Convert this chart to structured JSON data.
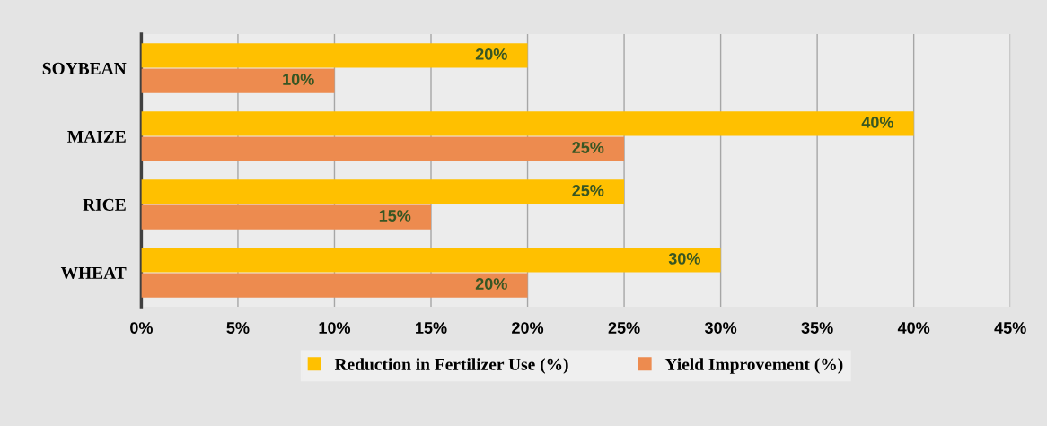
{
  "chart_data": {
    "type": "bar",
    "orientation": "horizontal",
    "categories": [
      "SOYBEAN",
      "MAIZE",
      "RICE",
      "WHEAT"
    ],
    "series": [
      {
        "name": "Reduction in Fertilizer Use (%)",
        "color": "#ffc000",
        "values": [
          20,
          40,
          25,
          30
        ],
        "value_labels": [
          "20%",
          "40%",
          "25%",
          "30%"
        ]
      },
      {
        "name": "Yield Improvement (%)",
        "color": "#ed8b4f",
        "values": [
          10,
          25,
          15,
          20
        ],
        "value_labels": [
          "10%",
          "25%",
          "15%",
          "20%"
        ]
      }
    ],
    "xlim": [
      0,
      45
    ],
    "xticks": [
      {
        "value": 0,
        "label": "0%"
      },
      {
        "value": 5,
        "label": "5%"
      },
      {
        "value": 10,
        "label": "10%"
      },
      {
        "value": 15,
        "label": "15%"
      },
      {
        "value": 20,
        "label": "20%"
      },
      {
        "value": 25,
        "label": "25%"
      },
      {
        "value": 30,
        "label": "30%"
      },
      {
        "value": 35,
        "label": "35%"
      },
      {
        "value": 40,
        "label": "40%"
      },
      {
        "value": 45,
        "label": "45%"
      }
    ],
    "grid": "x",
    "legend": "bottom"
  }
}
